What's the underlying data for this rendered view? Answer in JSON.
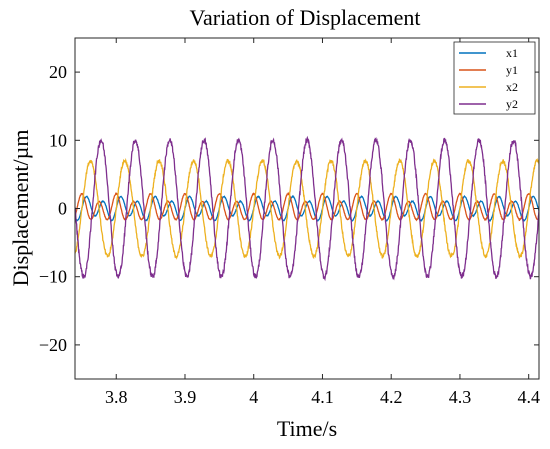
{
  "chart_data": {
    "type": "line",
    "title": "Variation of Displacement",
    "xlabel": "Time/s",
    "ylabel": "Displacement/µm",
    "xlim": [
      3.74,
      4.415
    ],
    "ylim": [
      -25,
      25
    ],
    "xticks": [
      3.8,
      3.9,
      4,
      4.1,
      4.2,
      4.3,
      4.4
    ],
    "xtick_labels": [
      "3.8",
      "3.9",
      "4",
      "4.1",
      "4.2",
      "4.3",
      "4.4"
    ],
    "yticks": [
      -20,
      -10,
      0,
      10,
      20
    ],
    "ytick_labels": [
      "−20",
      "−10",
      "0",
      "10",
      "20"
    ],
    "grid": false,
    "legend_position": "top-right",
    "period_s": 0.05,
    "series": [
      {
        "name": "x1",
        "color": "#0072BD",
        "amplitude": 1.4,
        "harmonic": 2,
        "phase_deg": 0
      },
      {
        "name": "y1",
        "color": "#D95319",
        "amplitude": 1.6,
        "harmonic": 2,
        "phase_deg": 90
      },
      {
        "name": "x2",
        "color": "#EDB120",
        "amplitude": 7.0,
        "harmonic": 1,
        "phase_deg": 0
      },
      {
        "name": "y2",
        "color": "#7E2F8E",
        "amplitude": 10.0,
        "harmonic": 1,
        "phase_deg": -110
      }
    ]
  }
}
